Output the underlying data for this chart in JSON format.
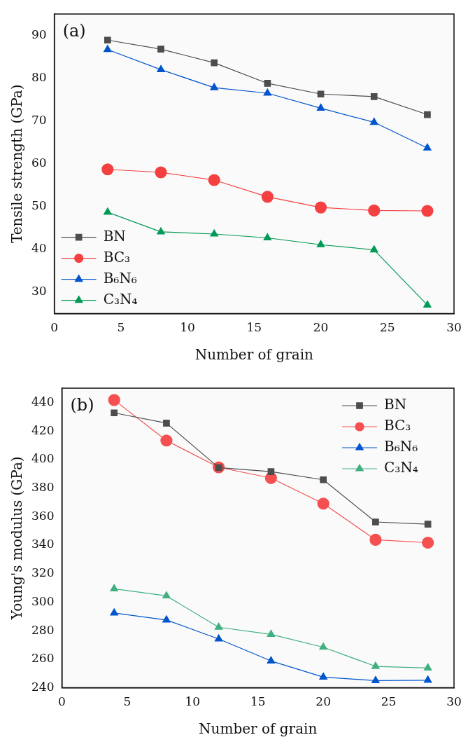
{
  "chart_data": [
    {
      "type": "line",
      "annotations": [
        "(a)"
      ],
      "xlabel": "Number of grain",
      "ylabel": "Tensile strength (GPa)",
      "x": [
        4,
        8,
        12,
        16,
        20,
        24,
        28
      ],
      "xlim": [
        0,
        30
      ],
      "xticks": [
        0,
        5,
        10,
        15,
        20,
        25,
        30
      ],
      "ylim": [
        25,
        95
      ],
      "yticks": [
        30,
        40,
        50,
        60,
        70,
        80,
        90
      ],
      "grid": false,
      "legend": "bottom left",
      "series": [
        {
          "name": "BN",
          "color": "#4d4d4d",
          "marker": "square",
          "values": [
            88.9,
            86.8,
            83.6,
            78.8,
            76.3,
            75.7,
            71.5
          ]
        },
        {
          "name": "BC₃",
          "color": "#f44040",
          "marker": "circle",
          "values": [
            58.7,
            58.0,
            56.2,
            52.3,
            49.8,
            49.1,
            49.0
          ]
        },
        {
          "name": "B₆N₆",
          "color": "#0055cc",
          "marker": "triangle",
          "values": [
            86.7,
            82.0,
            77.8,
            76.5,
            73.0,
            69.7,
            63.7
          ]
        },
        {
          "name": "C₃N₄",
          "color": "#009955",
          "marker": "triangle",
          "values": [
            48.7,
            44.1,
            43.6,
            42.7,
            41.1,
            39.9,
            27.0
          ]
        }
      ]
    },
    {
      "type": "line",
      "annotations": [
        "(b)"
      ],
      "xlabel": "Number of grain",
      "ylabel": "Young's modulus (GPa)",
      "x": [
        4,
        8,
        12,
        16,
        20,
        24,
        28
      ],
      "xlim": [
        0,
        30
      ],
      "xticks": [
        0,
        5,
        10,
        15,
        20,
        25,
        30
      ],
      "ylim": [
        240,
        450
      ],
      "yticks": [
        240,
        260,
        280,
        300,
        320,
        340,
        360,
        380,
        400,
        420,
        440
      ],
      "grid": false,
      "legend": "top right",
      "series": [
        {
          "name": "BN",
          "color": "#4d4d4d",
          "marker": "square",
          "values": [
            432.7,
            425.5,
            394.3,
            391.5,
            385.8,
            356.2,
            354.7
          ]
        },
        {
          "name": "BC₃",
          "color": "#f45050",
          "marker": "circle",
          "values": [
            441.7,
            413.3,
            394.5,
            387.0,
            369.1,
            343.7,
            341.7
          ]
        },
        {
          "name": "B₆N₆",
          "color": "#0055cc",
          "marker": "triangle",
          "values": [
            292.4,
            287.5,
            274.2,
            258.8,
            247.5,
            245.0,
            245.3
          ]
        },
        {
          "name": "C₃N₄",
          "color": "#40b080",
          "marker": "triangle",
          "values": [
            309.4,
            304.4,
            282.4,
            277.4,
            268.4,
            255.0,
            253.9
          ]
        }
      ]
    }
  ]
}
